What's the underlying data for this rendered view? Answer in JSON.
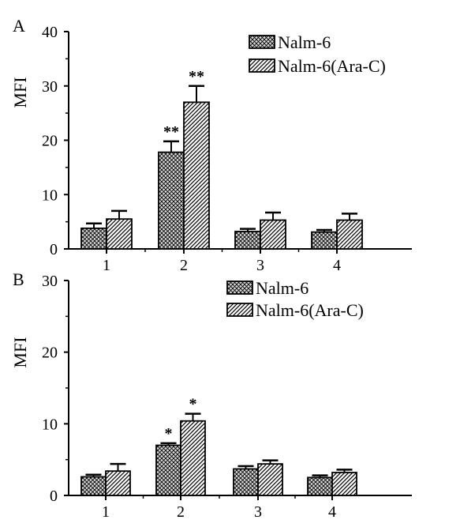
{
  "chart_data": [
    {
      "panel_label": "A",
      "type": "bar",
      "ylabel": "MFI",
      "ylim": [
        0,
        40
      ],
      "yticks": [
        0,
        10,
        20,
        30,
        40
      ],
      "categories": [
        "1",
        "2",
        "3",
        "4"
      ],
      "legend_position": "top-right",
      "series": [
        {
          "name": "Nalm-6",
          "pattern": "crosshatch",
          "values": [
            3.8,
            17.8,
            3.2,
            3.1
          ],
          "errors": [
            0.9,
            2.0,
            0.5,
            0.4
          ],
          "annotations": [
            "",
            "**",
            "",
            ""
          ]
        },
        {
          "name": "Nalm-6(Ara-C)",
          "pattern": "diagonal",
          "values": [
            5.5,
            27.0,
            5.3,
            5.3
          ],
          "errors": [
            1.5,
            3.0,
            1.4,
            1.2
          ],
          "annotations": [
            "",
            "**",
            "",
            ""
          ]
        }
      ]
    },
    {
      "panel_label": "B",
      "type": "bar",
      "ylabel": "MFI",
      "ylim": [
        0,
        30
      ],
      "yticks": [
        0,
        10,
        20,
        30
      ],
      "categories": [
        "1",
        "2",
        "3",
        "4"
      ],
      "legend_position": "top-right",
      "series": [
        {
          "name": "Nalm-6",
          "pattern": "crosshatch",
          "values": [
            2.6,
            7.0,
            3.7,
            2.5
          ],
          "errors": [
            0.3,
            0.3,
            0.4,
            0.3
          ],
          "annotations": [
            "",
            "*",
            "",
            ""
          ]
        },
        {
          "name": "Nalm-6(Ara-C)",
          "pattern": "diagonal",
          "values": [
            3.4,
            10.4,
            4.4,
            3.2
          ],
          "errors": [
            1.0,
            1.0,
            0.5,
            0.4
          ],
          "annotations": [
            "",
            "*",
            "",
            ""
          ]
        }
      ]
    }
  ]
}
